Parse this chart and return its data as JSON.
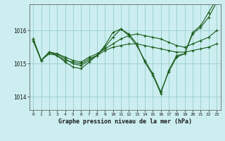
{
  "title": "Graphe pression niveau de la mer (hPa)",
  "background_color": "#cceef0",
  "grid_color": "#99cccc",
  "line_color": "#1a5c1a",
  "xlim": [
    -0.5,
    23.5
  ],
  "ylim": [
    1013.6,
    1016.8
  ],
  "yticks": [
    1014,
    1015,
    1016
  ],
  "xticks": [
    0,
    1,
    2,
    3,
    4,
    5,
    6,
    7,
    8,
    9,
    10,
    11,
    12,
    13,
    14,
    15,
    16,
    17,
    18,
    19,
    20,
    21,
    22,
    23
  ],
  "series": [
    [
      1015.75,
      1015.1,
      1015.3,
      1015.25,
      1015.1,
      1015.05,
      1015.0,
      1015.15,
      1015.25,
      1015.4,
      1015.5,
      1015.55,
      1015.6,
      1015.6,
      1015.55,
      1015.5,
      1015.45,
      1015.4,
      1015.35,
      1015.35,
      1015.4,
      1015.45,
      1015.5,
      1015.6
    ],
    [
      1015.75,
      1015.1,
      1015.35,
      1015.25,
      1015.05,
      1014.9,
      1014.85,
      1015.05,
      1015.25,
      1015.55,
      1015.95,
      1016.05,
      1015.9,
      1015.6,
      1015.05,
      1014.65,
      1014.1,
      1014.8,
      1015.25,
      1015.3,
      1015.95,
      1016.15,
      1016.55,
      1016.95
    ],
    [
      1015.7,
      1015.1,
      1015.35,
      1015.3,
      1015.15,
      1015.0,
      1014.95,
      1015.1,
      1015.25,
      1015.5,
      1015.8,
      1016.05,
      1015.85,
      1015.55,
      1015.1,
      1014.7,
      1014.15,
      1014.75,
      1015.2,
      1015.3,
      1015.9,
      1016.1,
      1016.4,
      1016.85
    ],
    [
      1015.7,
      1015.1,
      1015.35,
      1015.3,
      1015.2,
      1015.1,
      1015.05,
      1015.2,
      1015.3,
      1015.45,
      1015.6,
      1015.75,
      1015.85,
      1015.9,
      1015.85,
      1015.8,
      1015.75,
      1015.65,
      1015.55,
      1015.5,
      1015.6,
      1015.7,
      1015.8,
      1016.0
    ]
  ]
}
